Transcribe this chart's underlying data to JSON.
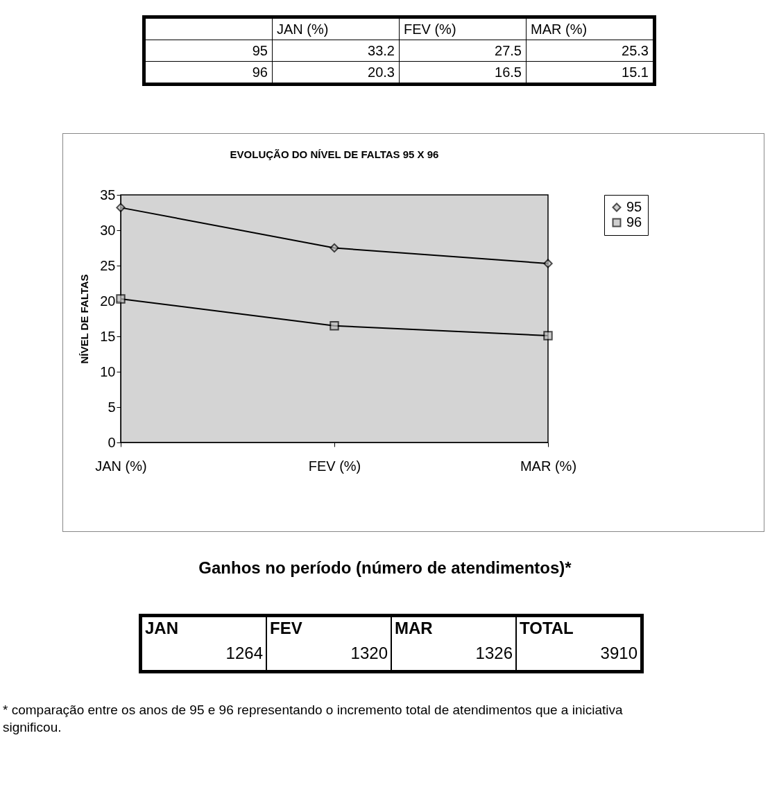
{
  "chart_data": {
    "type": "line",
    "title": "EVOLUÇÃO DO NÍVEL DE FALTAS 95 X 96",
    "ylabel": "NÍVEL DE FALTAS",
    "categories": [
      "JAN (%)",
      "FEV (%)",
      "MAR (%)"
    ],
    "series": [
      {
        "name": "95",
        "color": "#000000",
        "marker": "diamond",
        "values": [
          33.2,
          27.5,
          25.3
        ]
      },
      {
        "name": "96",
        "color": "#000000",
        "marker": "square",
        "values": [
          20.3,
          16.5,
          15.1
        ]
      }
    ],
    "ylim": [
      0,
      35
    ],
    "yticks": [
      0,
      5,
      10,
      15,
      20,
      25,
      30,
      35
    ],
    "legend": "right",
    "annotations": [
      "Ganhos no período (número de atendimentos)*",
      "JAN",
      "1264",
      "FEV",
      "1320",
      "MAR",
      "1326",
      "TOTAL",
      "3910",
      "* comparação entre os anos de 95 e 96 representando o incremento total de atendimentos que a iniciativa significou.",
      "33.2",
      "27.5",
      "25.3",
      "20.3",
      "16.5",
      "15.1"
    ]
  }
}
